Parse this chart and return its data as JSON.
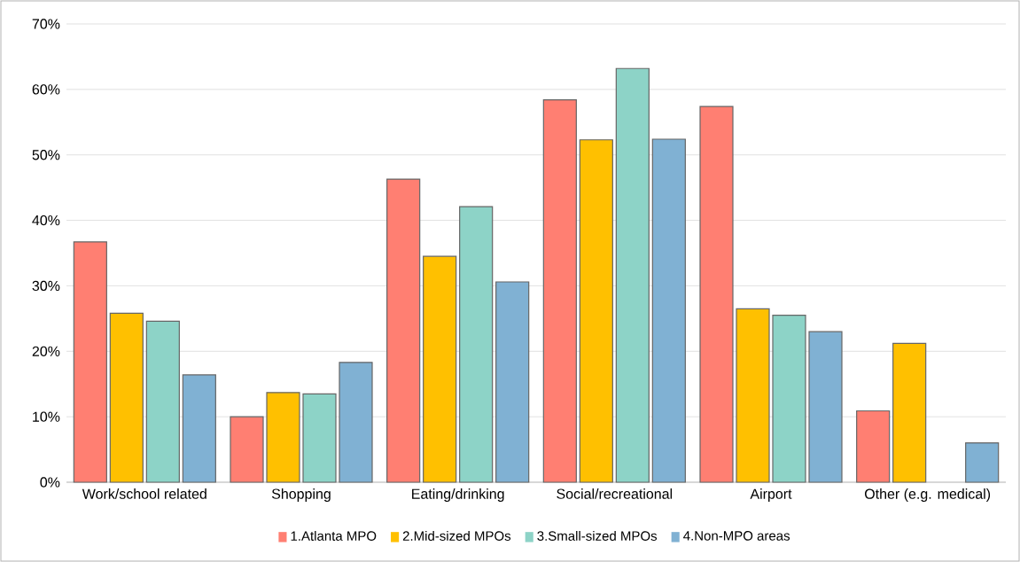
{
  "chart_data": {
    "type": "bar",
    "categories": [
      "Work/school related",
      "Shopping",
      "Eating/drinking",
      "Social/recreational",
      "Airport",
      "Other (e.g. medical)"
    ],
    "series": [
      {
        "name": "1.Atlanta MPO",
        "color": "#ff7f72",
        "values": [
          36.7,
          10.0,
          46.3,
          58.4,
          57.4,
          10.9
        ]
      },
      {
        "name": "2.Mid-sized MPOs",
        "color": "#ffc000",
        "values": [
          25.8,
          13.7,
          34.5,
          52.3,
          26.5,
          21.2
        ]
      },
      {
        "name": "3.Small-sized MPOs",
        "color": "#8dd3c7",
        "values": [
          24.6,
          13.5,
          42.1,
          63.2,
          25.5,
          null
        ]
      },
      {
        "name": "4.Non-MPO areas",
        "color": "#80b1d3",
        "values": [
          16.4,
          18.3,
          30.6,
          52.4,
          23.0,
          6.0
        ]
      }
    ],
    "ylim": [
      0,
      70
    ],
    "yticks": [
      {
        "value": 0,
        "label": "0%"
      },
      {
        "value": 10,
        "label": "10%"
      },
      {
        "value": 20,
        "label": "20%"
      },
      {
        "value": 30,
        "label": "30%"
      },
      {
        "value": 40,
        "label": "40%"
      },
      {
        "value": 50,
        "label": "50%"
      },
      {
        "value": 60,
        "label": "60%"
      },
      {
        "value": 70,
        "label": "70%"
      }
    ],
    "grid": "y",
    "legend": "bottom"
  }
}
